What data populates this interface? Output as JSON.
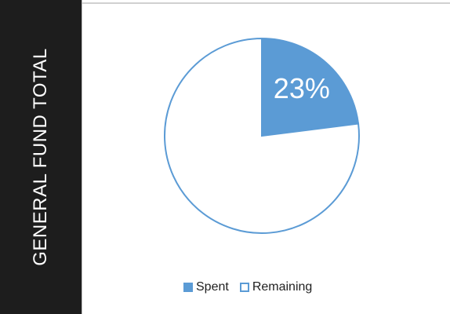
{
  "sidebar": {
    "title": "GENERAL FUND TOTAL"
  },
  "colors": {
    "spent": "#5b9bd5",
    "remaining_fill": "#ffffff",
    "outline": "#5b9bd5",
    "sidebar_bg": "#1d1d1d"
  },
  "chart_data": {
    "type": "pie",
    "title": "GENERAL FUND TOTAL",
    "slices": [
      {
        "label": "Spent",
        "value": 23,
        "data_label": "23%"
      },
      {
        "label": "Remaining",
        "value": 77,
        "data_label": ""
      }
    ],
    "legend": [
      "Spent",
      "Remaining"
    ],
    "legend_position": "bottom"
  }
}
